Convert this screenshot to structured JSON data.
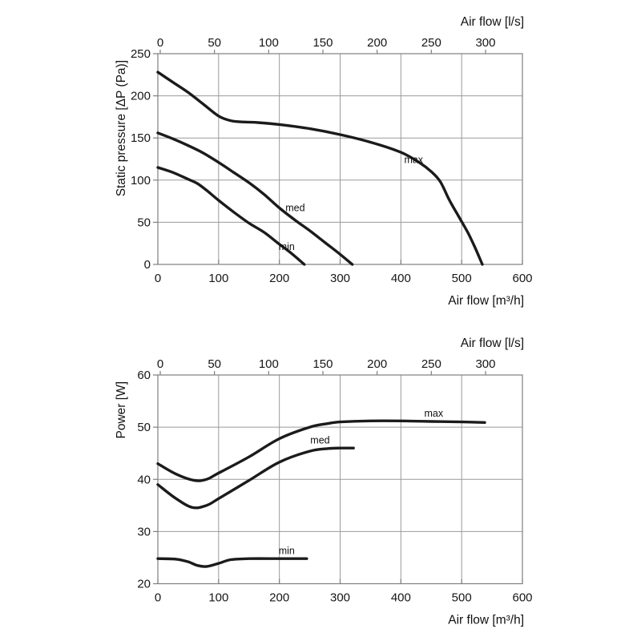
{
  "page": {
    "background": "#ffffff",
    "styles": {
      "curve_color": "#1b1b1b",
      "grid_color": "#9a9a9a",
      "border_color": "#7f7f7f",
      "text_color": "#161616"
    }
  },
  "chart_data": [
    {
      "type": "line",
      "title": "",
      "ylabel": "Static pressure [ΔP (Pa)]",
      "xlabel": "Air flow [m³/h]",
      "xlabel_top": "Air flow [l/s]",
      "xlim": [
        0,
        600
      ],
      "ylim": [
        0,
        250
      ],
      "x_ticks": [
        0,
        100,
        200,
        300,
        400,
        500,
        600
      ],
      "x_top_ticks": [
        0,
        50,
        100,
        150,
        200,
        250,
        300
      ],
      "y_ticks": [
        0,
        50,
        100,
        150,
        200,
        250
      ],
      "grid": true,
      "legend_position": "inline-labels",
      "series": [
        {
          "name": "max",
          "label_pos": [
            421,
            124
          ],
          "points": [
            [
              0,
              228
            ],
            [
              25,
              216
            ],
            [
              50,
              204
            ],
            [
              75,
              190
            ],
            [
              100,
              176
            ],
            [
              120,
              170.5
            ],
            [
              140,
              169
            ],
            [
              160,
              168.5
            ],
            [
              200,
              166
            ],
            [
              250,
              161
            ],
            [
              300,
              154
            ],
            [
              350,
              145
            ],
            [
              400,
              133
            ],
            [
              430,
              121
            ],
            [
              450,
              110
            ],
            [
              465,
              98
            ],
            [
              480,
              76
            ],
            [
              495,
              57
            ],
            [
              510,
              38
            ],
            [
              522,
              20
            ],
            [
              534,
              0
            ]
          ]
        },
        {
          "name": "med",
          "label_pos": [
            226,
            67
          ],
          "points": [
            [
              0,
              156
            ],
            [
              25,
              149
            ],
            [
              50,
              141
            ],
            [
              75,
              132
            ],
            [
              100,
              121
            ],
            [
              125,
              109
            ],
            [
              150,
              97
            ],
            [
              175,
              83
            ],
            [
              200,
              67
            ],
            [
              225,
              53
            ],
            [
              250,
              40
            ],
            [
              275,
              26
            ],
            [
              300,
              12
            ],
            [
              320,
              0
            ]
          ]
        },
        {
          "name": "min",
          "label_pos": [
            212,
            21
          ],
          "points": [
            [
              0,
              115
            ],
            [
              25,
              109
            ],
            [
              50,
              101
            ],
            [
              65,
              96
            ],
            [
              80,
              88
            ],
            [
              100,
              76
            ],
            [
              125,
              62
            ],
            [
              150,
              49
            ],
            [
              175,
              38
            ],
            [
              200,
              24
            ],
            [
              220,
              13
            ],
            [
              241,
              0
            ]
          ]
        }
      ]
    },
    {
      "type": "line",
      "title": "",
      "ylabel": "Power [W]",
      "xlabel": "Air flow [m³/h]",
      "xlabel_top": "Air flow [l/s]",
      "xlim": [
        0,
        600
      ],
      "ylim": [
        20,
        60
      ],
      "x_ticks": [
        0,
        100,
        200,
        300,
        400,
        500,
        600
      ],
      "x_top_ticks": [
        0,
        50,
        100,
        150,
        200,
        250,
        300
      ],
      "y_ticks": [
        20,
        30,
        40,
        50,
        60
      ],
      "grid": true,
      "legend_position": "inline-labels",
      "series": [
        {
          "name": "max",
          "label_pos": [
            454,
            52.6
          ],
          "points": [
            [
              0,
              43
            ],
            [
              30,
              41
            ],
            [
              60,
              39.8
            ],
            [
              80,
              40
            ],
            [
              100,
              41.2
            ],
            [
              150,
              44.3
            ],
            [
              200,
              47.8
            ],
            [
              250,
              50
            ],
            [
              280,
              50.7
            ],
            [
              300,
              51
            ],
            [
              350,
              51.2
            ],
            [
              400,
              51.2
            ],
            [
              450,
              51.1
            ],
            [
              500,
              51
            ],
            [
              538,
              50.9
            ]
          ]
        },
        {
          "name": "med",
          "label_pos": [
            267,
            47.5
          ],
          "points": [
            [
              0,
              39
            ],
            [
              30,
              36.3
            ],
            [
              57,
              34.6
            ],
            [
              80,
              35
            ],
            [
              100,
              36.3
            ],
            [
              150,
              39.8
            ],
            [
              200,
              43.3
            ],
            [
              250,
              45.4
            ],
            [
              280,
              45.9
            ],
            [
              300,
              46
            ],
            [
              322,
              46
            ]
          ]
        },
        {
          "name": "min",
          "label_pos": [
            212,
            26.3
          ],
          "points": [
            [
              0,
              24.8
            ],
            [
              30,
              24.7
            ],
            [
              50,
              24.2
            ],
            [
              65,
              23.5
            ],
            [
              80,
              23.3
            ],
            [
              100,
              23.9
            ],
            [
              120,
              24.6
            ],
            [
              150,
              24.8
            ],
            [
              200,
              24.8
            ],
            [
              245,
              24.8
            ]
          ]
        }
      ]
    }
  ]
}
